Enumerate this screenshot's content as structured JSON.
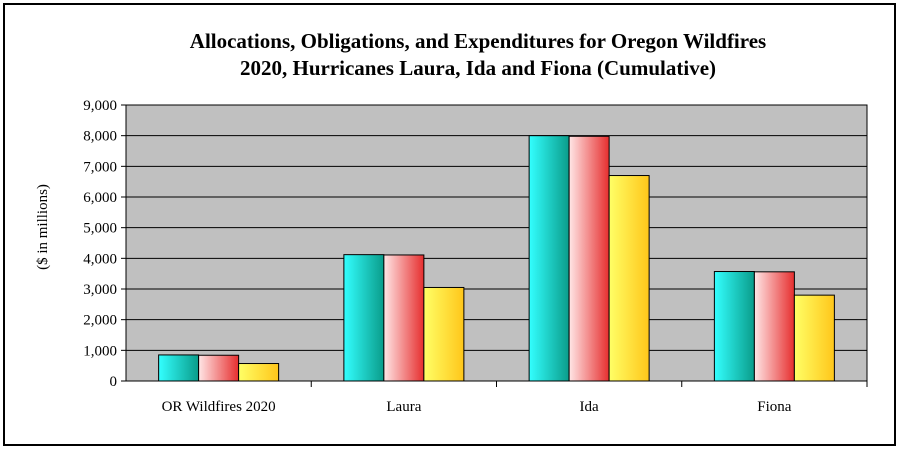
{
  "chart_data": {
    "type": "bar",
    "title": "Allocations, Obligations, and Expenditures for Oregon Wildfires",
    "subtitle": "2020, Hurricanes Laura, Ida and Fiona (Cumulative)",
    "xlabel": "",
    "ylabel": "($ in millions)",
    "ylim": [
      0,
      9000
    ],
    "ytick_step": 1000,
    "ytick_labels": [
      "0",
      "1,000",
      "2,000",
      "3,000",
      "4,000",
      "5,000",
      "6,000",
      "7,000",
      "8,000",
      "9,000"
    ],
    "grid": true,
    "legend": "none",
    "plot_background": "#c0c0c0",
    "categories": [
      "OR Wildfires 2020",
      "Laura",
      "Ida",
      "Fiona"
    ],
    "series": [
      {
        "values": [
          850,
          4120,
          8000,
          3570
        ],
        "color_light": "#33ffff",
        "color_dark": "#0a9c8a"
      },
      {
        "values": [
          840,
          4110,
          7980,
          3560
        ],
        "color_light": "#ffe6e6",
        "color_dark": "#e62e2e"
      },
      {
        "values": [
          570,
          3050,
          6700,
          2800
        ],
        "color_light": "#ffff66",
        "color_dark": "#ffc61a"
      }
    ]
  }
}
